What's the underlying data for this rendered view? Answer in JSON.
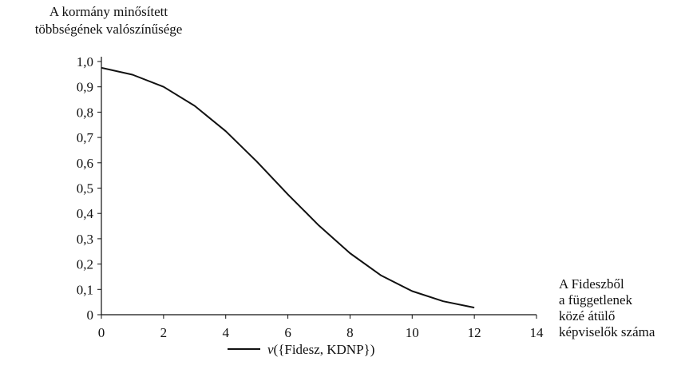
{
  "chart_data": {
    "type": "line",
    "title": "",
    "ylabel_lines": [
      "A kormány minősített",
      "többségének valószínűsége"
    ],
    "xlabel_lines": [
      "A Fideszből",
      "a függetlenek",
      "közé átülő",
      "képviselők száma"
    ],
    "xlim": [
      0,
      14
    ],
    "ylim": [
      0,
      1.0
    ],
    "x_ticks": [
      0,
      2,
      4,
      6,
      8,
      10,
      12,
      14
    ],
    "y_ticks": [
      0,
      0.1,
      0.2,
      0.3,
      0.4,
      0.5,
      0.6,
      0.7,
      0.8,
      0.9,
      1.0
    ],
    "x_tick_labels": [
      "0",
      "2",
      "4",
      "6",
      "8",
      "10",
      "12",
      "14"
    ],
    "y_tick_labels": [
      "0",
      "0,1",
      "0,2",
      "0,3",
      "0,4",
      "0,5",
      "0,6",
      "0,7",
      "0,8",
      "0,9",
      "1,0"
    ],
    "grid": false,
    "legend_position": "bottom-center",
    "series": [
      {
        "name": "v({Fidesz, KDNP})",
        "name_parts": {
          "italic": "v",
          "rest": "({Fidesz, KDNP})"
        },
        "color": "#111111",
        "x": [
          0,
          1,
          2,
          3,
          4,
          5,
          6,
          7,
          8,
          9,
          10,
          11,
          12
        ],
        "values": [
          0.975,
          0.948,
          0.9,
          0.825,
          0.725,
          0.605,
          0.475,
          0.352,
          0.243,
          0.155,
          0.093,
          0.053,
          0.028
        ]
      }
    ]
  }
}
